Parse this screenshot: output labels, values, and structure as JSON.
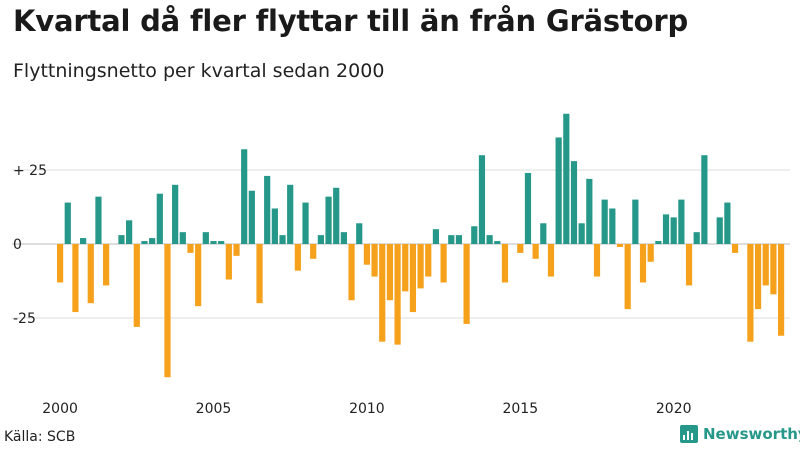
{
  "title": "Kvartal då fler flyttar till än från Grästorp",
  "subtitle": "Flyttningsnetto per kvartal sedan 2000",
  "source": "Källa: SCB",
  "brand": "Newsworthy",
  "colors": {
    "positive": "#26988a",
    "negative": "#f5a11c",
    "grid": "#dddddd",
    "zero": "#bbbbbb"
  },
  "chart_data": {
    "type": "bar",
    "x_start_year": 2000,
    "periods_per_year": 4,
    "x_tick_labels": [
      "2000",
      "2005",
      "2010",
      "2015",
      "2020"
    ],
    "y_ticks": [
      25,
      0,
      -25
    ],
    "y_tick_labels": [
      "+ 25",
      "0",
      "-25"
    ],
    "ylim": [
      -47,
      45
    ],
    "grid": true,
    "values": [
      -13,
      14,
      -23,
      2,
      -20,
      16,
      -14,
      0,
      3,
      8,
      -28,
      1,
      2,
      17,
      -45,
      20,
      4,
      -3,
      -21,
      4,
      1,
      1,
      -12,
      -4,
      32,
      18,
      -20,
      23,
      12,
      3,
      20,
      -9,
      14,
      -5,
      3,
      16,
      19,
      4,
      -19,
      7,
      -7,
      -11,
      -33,
      -19,
      -34,
      -16,
      -23,
      -15,
      -11,
      5,
      -13,
      3,
      3,
      -27,
      6,
      30,
      3,
      1,
      -13,
      0,
      -3,
      24,
      -5,
      7,
      -11,
      36,
      44,
      28,
      7,
      22,
      -11,
      15,
      12,
      -1,
      -22,
      15,
      -13,
      -6,
      1,
      10,
      9,
      15,
      -14,
      4,
      30,
      0,
      9,
      14,
      -3,
      0,
      -33,
      -22,
      -14,
      -17,
      -31
    ]
  }
}
